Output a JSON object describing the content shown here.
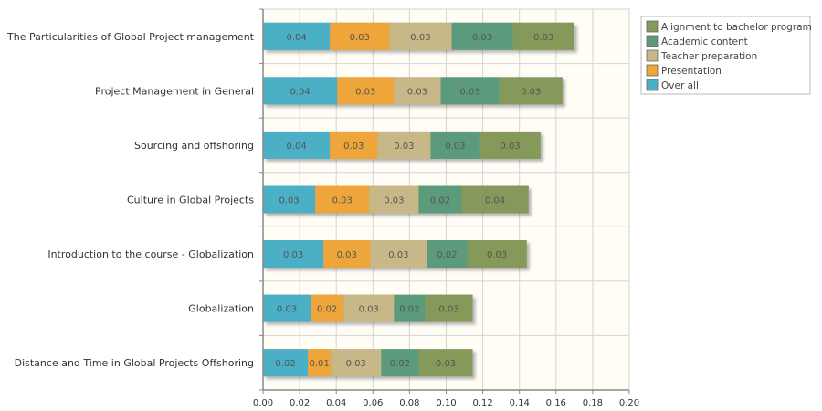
{
  "chart_data": {
    "type": "bar",
    "orientation": "horizontal",
    "stacked": true,
    "title": "",
    "xlabel": "",
    "ylabel": "",
    "xlim": [
      0,
      0.2
    ],
    "xticks": [
      "0.00",
      "0.02",
      "0.04",
      "0.06",
      "0.08",
      "0.10",
      "0.12",
      "0.14",
      "0.16",
      "0.18",
      "0.20"
    ],
    "grid": true,
    "legend": "top-right",
    "categories": [
      "The Particularities of Global Project management",
      "Project Management in General",
      "Sourcing and offshoring",
      "Culture in Global Projects",
      "Introduction to the course - Globalization",
      "Globalization",
      "Distance and Time in Global Projects Offshoring"
    ],
    "series": [
      {
        "name": "Over all",
        "color": "#4bafc6",
        "values": [
          0.0365,
          0.0405,
          0.0365,
          0.0285,
          0.033,
          0.026,
          0.0245
        ],
        "labels": [
          "0.04",
          "0.04",
          "0.04",
          "0.03",
          "0.03",
          "0.03",
          "0.02"
        ]
      },
      {
        "name": "Presentation",
        "color": "#eea53a",
        "values": [
          0.0325,
          0.031,
          0.026,
          0.0295,
          0.0255,
          0.018,
          0.0125
        ],
        "labels": [
          "0.03",
          "0.03",
          "0.03",
          "0.03",
          "0.03",
          "0.02",
          "0.01"
        ]
      },
      {
        "name": "Teacher preparation",
        "color": "#c9b887",
        "values": [
          0.034,
          0.0255,
          0.029,
          0.027,
          0.031,
          0.0275,
          0.0275
        ],
        "labels": [
          "0.03",
          "0.03",
          "0.03",
          "0.03",
          "0.03",
          "0.03",
          "0.03"
        ]
      },
      {
        "name": "Academic content",
        "color": "#5b9b7c",
        "values": [
          0.0335,
          0.032,
          0.027,
          0.0235,
          0.022,
          0.017,
          0.0205
        ],
        "labels": [
          "0.03",
          "0.03",
          "0.03",
          "0.02",
          "0.02",
          "0.02",
          "0.02"
        ]
      },
      {
        "name": "Alignment to bachelor program",
        "color": "#85995a",
        "values": [
          0.0335,
          0.0345,
          0.033,
          0.0365,
          0.0325,
          0.026,
          0.0295
        ],
        "labels": [
          "0.03",
          "0.03",
          "0.03",
          "0.04",
          "0.03",
          "0.03",
          "0.03"
        ]
      }
    ],
    "legend_order": [
      "Alignment to bachelor program",
      "Academic content",
      "Teacher preparation",
      "Presentation",
      "Over all"
    ]
  }
}
